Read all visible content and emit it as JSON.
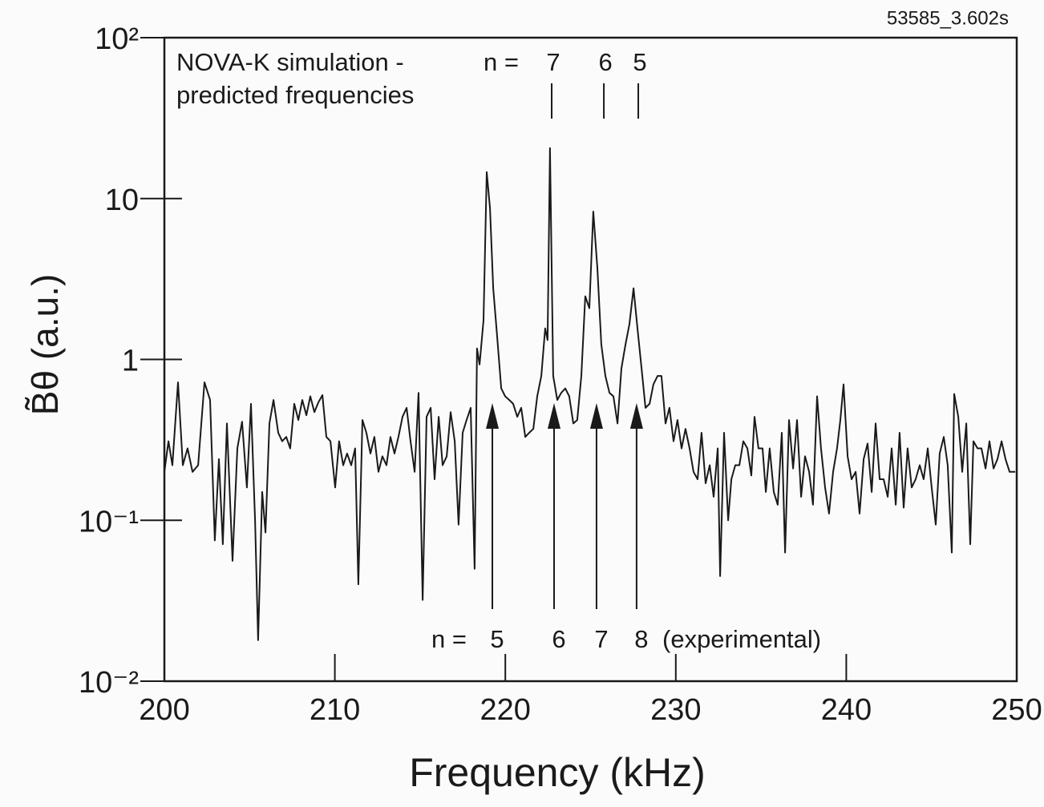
{
  "chart_data": {
    "type": "line",
    "corner_label": "53585_3.602s",
    "xlabel": "Frequency (kHz)",
    "ylabel": "B̃θ (a.u.)",
    "yscale": "log",
    "color": "#1a1a1a",
    "xlim": [
      200,
      250
    ],
    "ylim": [
      0.01,
      100
    ],
    "xticks": [
      200,
      210,
      220,
      230,
      240,
      250
    ],
    "yticks": [
      {
        "value": 100,
        "label": "10²"
      },
      10,
      1,
      {
        "value": 0.1,
        "label": "10⁻¹"
      },
      {
        "value": 0.01,
        "label": "10⁻²"
      }
    ],
    "x": [
      200.0,
      200.24,
      200.47,
      200.8,
      201.08,
      201.36,
      201.65,
      201.98,
      202.35,
      202.68,
      202.96,
      203.2,
      203.43,
      203.67,
      204.0,
      204.28,
      204.56,
      204.84,
      205.08,
      205.32,
      205.5,
      205.74,
      205.93,
      206.16,
      206.4,
      206.68,
      206.91,
      207.15,
      207.38,
      207.62,
      207.86,
      208.09,
      208.33,
      208.56,
      208.8,
      209.03,
      209.27,
      209.5,
      209.74,
      210.02,
      210.25,
      210.49,
      210.72,
      210.96,
      211.19,
      211.38,
      211.62,
      211.85,
      212.09,
      212.32,
      212.56,
      212.79,
      213.03,
      213.26,
      213.5,
      213.73,
      213.97,
      214.21,
      214.44,
      214.68,
      214.91,
      215.15,
      215.38,
      215.62,
      215.85,
      216.09,
      216.32,
      216.56,
      216.79,
      217.03,
      217.26,
      217.5,
      217.73,
      217.97,
      218.2,
      218.34,
      218.49,
      218.72,
      218.91,
      219.1,
      219.29,
      219.52,
      219.76,
      219.99,
      220.23,
      220.46,
      220.7,
      220.93,
      221.17,
      221.4,
      221.64,
      221.87,
      222.11,
      222.34,
      222.48,
      222.62,
      222.81,
      223.05,
      223.28,
      223.52,
      223.75,
      223.99,
      224.22,
      224.46,
      224.69,
      224.93,
      225.16,
      225.4,
      225.63,
      225.87,
      226.11,
      226.34,
      226.58,
      226.81,
      227.05,
      227.28,
      227.52,
      227.75,
      227.99,
      228.22,
      228.46,
      228.69,
      228.93,
      229.16,
      229.4,
      229.63,
      229.87,
      230.1,
      230.34,
      230.57,
      230.81,
      231.04,
      231.28,
      231.51,
      231.75,
      231.99,
      232.22,
      232.46,
      232.6,
      232.83,
      233.07,
      233.26,
      233.49,
      233.73,
      233.96,
      234.2,
      234.43,
      234.62,
      234.85,
      235.09,
      235.28,
      235.51,
      235.75,
      235.98,
      236.22,
      236.41,
      236.64,
      236.88,
      237.11,
      237.35,
      237.58,
      237.82,
      238.05,
      238.29,
      238.52,
      238.76,
      238.99,
      239.23,
      239.46,
      239.65,
      239.84,
      240.08,
      240.31,
      240.55,
      240.78,
      241.02,
      241.25,
      241.49,
      241.72,
      241.96,
      242.19,
      242.43,
      242.66,
      242.9,
      243.13,
      243.37,
      243.6,
      243.84,
      244.07,
      244.31,
      244.54,
      244.78,
      245.01,
      245.25,
      245.48,
      245.72,
      245.95,
      246.19,
      246.33,
      246.57,
      246.8,
      247.04,
      247.27,
      247.46,
      247.7,
      247.93,
      248.17,
      248.4,
      248.64,
      248.87,
      249.11,
      249.34,
      249.58,
      249.91
    ],
    "values": [
      0.2,
      0.31,
      0.22,
      0.72,
      0.22,
      0.28,
      0.2,
      0.22,
      0.72,
      0.56,
      0.075,
      0.24,
      0.071,
      0.4,
      0.056,
      0.28,
      0.41,
      0.16,
      0.53,
      0.1,
      0.018,
      0.15,
      0.084,
      0.4,
      0.56,
      0.35,
      0.31,
      0.33,
      0.28,
      0.53,
      0.42,
      0.56,
      0.45,
      0.59,
      0.47,
      0.54,
      0.6,
      0.33,
      0.31,
      0.16,
      0.31,
      0.22,
      0.26,
      0.22,
      0.28,
      0.04,
      0.42,
      0.35,
      0.26,
      0.33,
      0.2,
      0.25,
      0.22,
      0.33,
      0.26,
      0.33,
      0.44,
      0.5,
      0.31,
      0.2,
      0.62,
      0.032,
      0.44,
      0.5,
      0.18,
      0.44,
      0.22,
      0.25,
      0.47,
      0.31,
      0.094,
      0.35,
      0.42,
      0.5,
      0.05,
      1.17,
      0.93,
      1.75,
      14.6,
      8.7,
      2.77,
      1.39,
      0.66,
      0.59,
      0.56,
      0.53,
      0.44,
      0.5,
      0.33,
      0.35,
      0.37,
      0.59,
      0.79,
      1.56,
      1.32,
      20.6,
      0.79,
      0.56,
      0.62,
      0.66,
      0.59,
      0.4,
      0.42,
      0.79,
      2.47,
      2.08,
      8.3,
      3.7,
      1.24,
      0.79,
      0.62,
      0.59,
      0.4,
      0.88,
      1.24,
      1.66,
      2.77,
      1.56,
      0.88,
      0.5,
      0.53,
      0.7,
      0.79,
      0.79,
      0.4,
      0.5,
      0.31,
      0.42,
      0.28,
      0.37,
      0.28,
      0.2,
      0.18,
      0.35,
      0.17,
      0.22,
      0.14,
      0.28,
      0.045,
      0.35,
      0.1,
      0.18,
      0.22,
      0.22,
      0.31,
      0.28,
      0.19,
      0.44,
      0.28,
      0.28,
      0.15,
      0.28,
      0.15,
      0.125,
      0.35,
      0.063,
      0.42,
      0.21,
      0.42,
      0.14,
      0.25,
      0.2,
      0.125,
      0.59,
      0.28,
      0.16,
      0.11,
      0.2,
      0.28,
      0.42,
      0.7,
      0.25,
      0.18,
      0.2,
      0.11,
      0.24,
      0.3,
      0.15,
      0.4,
      0.18,
      0.18,
      0.14,
      0.28,
      0.125,
      0.35,
      0.12,
      0.28,
      0.16,
      0.18,
      0.22,
      0.18,
      0.28,
      0.16,
      0.094,
      0.26,
      0.33,
      0.22,
      0.063,
      0.61,
      0.44,
      0.2,
      0.4,
      0.071,
      0.31,
      0.28,
      0.28,
      0.21,
      0.31,
      0.21,
      0.24,
      0.31,
      0.24,
      0.2,
      0.2
    ],
    "annotations": {
      "predicted": {
        "text": [
          "NOVA-K simulation -",
          "predicted frequencies"
        ],
        "n_label": "n =",
        "modes": [
          {
            "n": "7",
            "x": 222.72
          },
          {
            "n": "6",
            "x": 225.78
          },
          {
            "n": "5",
            "x": 227.8
          }
        ]
      },
      "experimental": {
        "n_label": "n =",
        "note": "(experimental)",
        "modes": [
          {
            "n": "5",
            "x": 219.24
          },
          {
            "n": "6",
            "x": 222.86
          },
          {
            "n": "7",
            "x": 225.35
          },
          {
            "n": "8",
            "x": 227.7
          }
        ]
      }
    }
  }
}
